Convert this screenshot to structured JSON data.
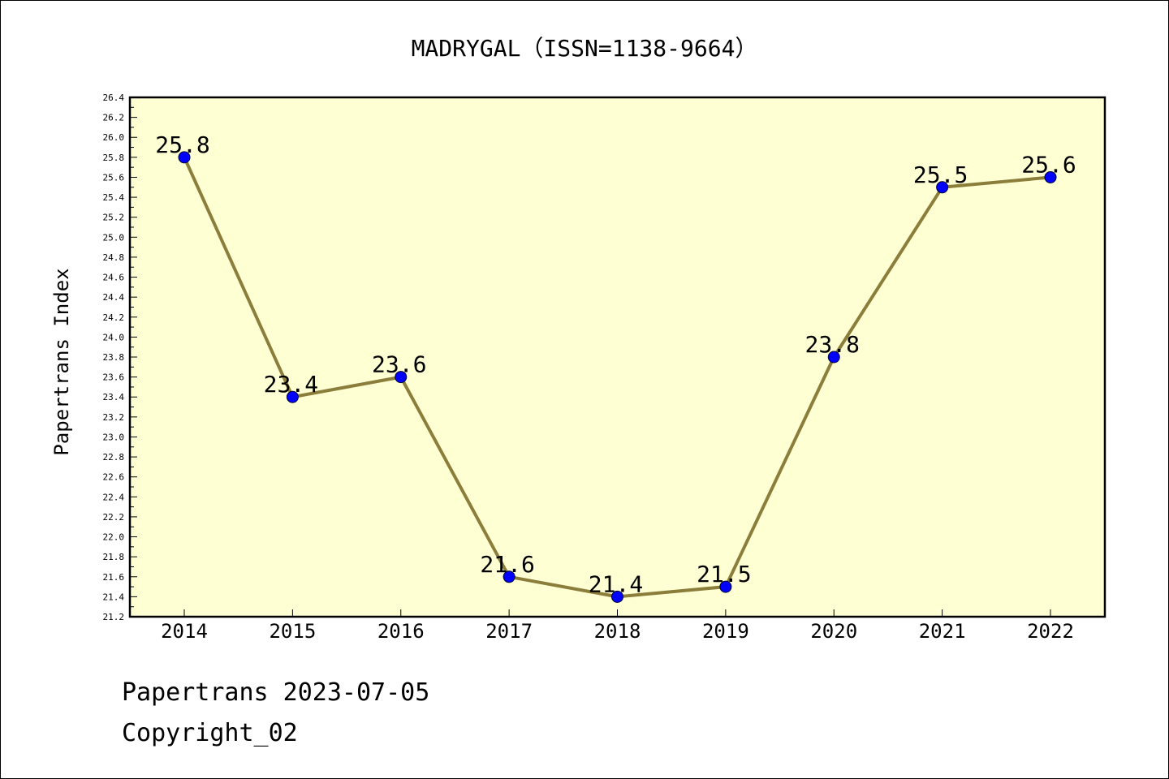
{
  "chart_data": {
    "type": "line",
    "title": "MADRYGAL（ISSN=1138-9664）",
    "ylabel": "Papertrans Index",
    "xlabel": "",
    "categories": [
      "2014",
      "2015",
      "2016",
      "2017",
      "2018",
      "2019",
      "2020",
      "2021",
      "2022"
    ],
    "series": [
      {
        "values": [
          25.8,
          23.4,
          23.6,
          21.6,
          21.4,
          21.5,
          23.8,
          25.5,
          25.6
        ],
        "data_labels": [
          "25.8",
          "23.4",
          "23.6",
          "21.6",
          "21.4",
          "21.5",
          "23.8",
          "25.5",
          "25.6"
        ]
      }
    ],
    "ylim": [
      21.2,
      26.4
    ],
    "y_ticks": [
      "21.2",
      "21.4",
      "21.6",
      "21.8",
      "22.0",
      "22.2",
      "22.4",
      "22.6",
      "22.8",
      "23.0",
      "23.2",
      "23.4",
      "23.6",
      "23.8",
      "24.0",
      "24.2",
      "24.4",
      "24.6",
      "24.8",
      "25.0",
      "25.2",
      "25.4",
      "25.6",
      "25.8",
      "26.0",
      "26.2",
      "26.4"
    ],
    "grid": false,
    "legend": "none",
    "colors": {
      "plot_background": "#ffffd4",
      "line": "#8b7d3a",
      "marker": "#0000ff"
    }
  },
  "footer": {
    "line1": "Papertrans 2023-07-05",
    "line2": "Copyright_02"
  }
}
